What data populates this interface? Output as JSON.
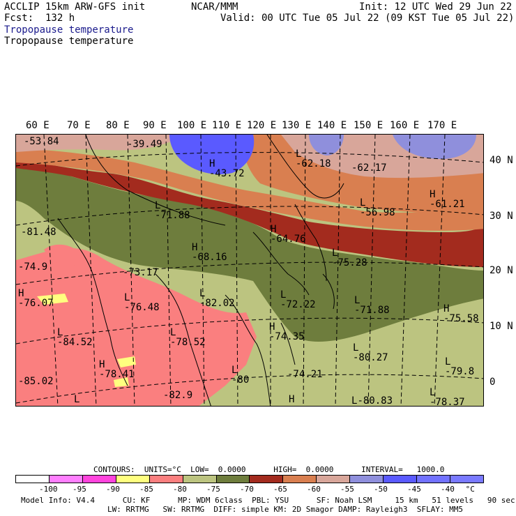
{
  "header": {
    "model": "ACCLIP 15km ARW-GFS init",
    "forecast": "Fcst:  132 h",
    "org": "NCAR/MMM",
    "init": "Init: 12 UTC Wed 29 Jun 22",
    "valid": "Valid: 00 UTC Tue 05 Jul 22 (09 KST Tue 05 Jul 22)",
    "field_title_1": "Tropopause temperature",
    "field_title_2": "Tropopause temperature"
  },
  "map": {
    "lon_labels": [
      "60 E",
      "70 E",
      "80 E",
      "90 E",
      "100 E",
      "110 E",
      "120 E",
      "130 E",
      "140 E",
      "150 E",
      "160 E",
      "170 E"
    ],
    "lat_labels": [
      "40 N",
      "30 N",
      "20 N",
      "10 N",
      "0"
    ],
    "markers": [
      {
        "letter": "",
        "value": "-53.84"
      },
      {
        "letter": "",
        "value": "-39.49"
      },
      {
        "letter": "H",
        "value": "-43.72"
      },
      {
        "letter": "L",
        "value": "-62.18"
      },
      {
        "letter": "",
        "value": "-62.17"
      },
      {
        "letter": "L",
        "value": "-71.88"
      },
      {
        "letter": "L",
        "value": "-56.98"
      },
      {
        "letter": "H",
        "value": "-61.21"
      },
      {
        "letter": "",
        "value": "-81.48"
      },
      {
        "letter": "H",
        "value": "-68.16"
      },
      {
        "letter": "H",
        "value": "-64.76"
      },
      {
        "letter": "L",
        "value": "-75.28"
      },
      {
        "letter": "",
        "value": "-74.9"
      },
      {
        "letter": "",
        "value": "-73.17"
      },
      {
        "letter": "H",
        "value": "-76.07"
      },
      {
        "letter": "L",
        "value": "-76.48"
      },
      {
        "letter": "L",
        "value": "-82.02"
      },
      {
        "letter": "L",
        "value": "-72.22"
      },
      {
        "letter": "L",
        "value": "-71.88"
      },
      {
        "letter": "H",
        "value": "-75.58"
      },
      {
        "letter": "L",
        "value": "-84.52"
      },
      {
        "letter": "L",
        "value": "-78.52"
      },
      {
        "letter": "H",
        "value": "-74.35"
      },
      {
        "letter": "L",
        "value": "-80.27"
      },
      {
        "letter": "H",
        "value": "-78.41"
      },
      {
        "letter": "L",
        "value": "-79.8"
      },
      {
        "letter": "",
        "value": "-85.02"
      },
      {
        "letter": "L",
        "value": "-80"
      },
      {
        "letter": "",
        "value": "-74.21"
      },
      {
        "letter": "",
        "value": "-82.9"
      },
      {
        "letter": "H",
        "value": ""
      },
      {
        "letter": "L",
        "value": ""
      },
      {
        "letter": "L",
        "value": "-80.83"
      },
      {
        "letter": "L",
        "value": "-78.37"
      }
    ]
  },
  "contours_line": "CONTOURS:  UNITS=°C  LOW=  0.0000      HIGH=  0.0000      INTERVAL=   1000.0",
  "colorbar": {
    "colors": [
      "#ffffff",
      "#ff7fff",
      "#ff44dd",
      "#ffff7f",
      "#fa7f7f",
      "#bcc480",
      "#6e7d3d",
      "#a32b1e",
      "#d97f50",
      "#d8a69a",
      "#8f8fdc",
      "#5a5aff",
      "#7272ff",
      "#7a7aff"
    ],
    "labels": [
      "-100",
      "-95",
      "-90",
      "-85",
      "-80",
      "-75",
      "-70",
      "-65",
      "-60",
      "-55",
      "-50",
      "-45",
      "-40",
      "°C"
    ]
  },
  "footer": {
    "line1": "Model Info: V4.4      CU: KF      MP: WDM 6class  PBL: YSU      SF: Noah LSM     15 km   51 levels   90 sec",
    "line2": "LW: RRTMG   SW: RRTMG  DIFF: simple KM: 2D Smagor DAMP: Rayleigh3  SFLAY: MM5"
  }
}
